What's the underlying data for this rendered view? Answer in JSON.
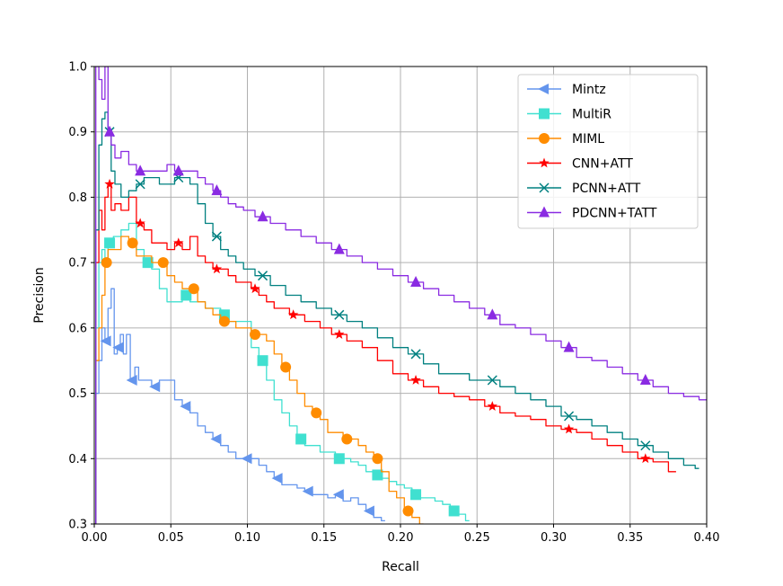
{
  "chart_data": {
    "type": "line",
    "xlabel": "Recall",
    "ylabel": "Precision",
    "xlim": [
      0.0,
      0.4
    ],
    "ylim": [
      0.3,
      1.0
    ],
    "x_ticks": [
      "0.00",
      "0.05",
      "0.10",
      "0.15",
      "0.20",
      "0.25",
      "0.30",
      "0.35",
      "0.40"
    ],
    "y_ticks": [
      "0.3",
      "0.4",
      "0.5",
      "0.6",
      "0.7",
      "0.8",
      "0.9",
      "1.0"
    ],
    "grid": true,
    "legend_position": "top-right",
    "series": [
      {
        "name": "Mintz",
        "color": "#6495ED",
        "marker": "triangle-left",
        "x": [
          0.0,
          0.002,
          0.004,
          0.006,
          0.008,
          0.01,
          0.012,
          0.014,
          0.016,
          0.018,
          0.02,
          0.022,
          0.025,
          0.028,
          0.03,
          0.035,
          0.04,
          0.045,
          0.05,
          0.055,
          0.06,
          0.065,
          0.07,
          0.075,
          0.08,
          0.085,
          0.09,
          0.095,
          0.1,
          0.105,
          0.11,
          0.115,
          0.12,
          0.125,
          0.13,
          0.135,
          0.14,
          0.145,
          0.15,
          0.155,
          0.16,
          0.165,
          0.17,
          0.175,
          0.18,
          0.185,
          0.19
        ],
        "y": [
          0.3,
          0.5,
          0.55,
          0.6,
          0.58,
          0.63,
          0.66,
          0.56,
          0.57,
          0.59,
          0.56,
          0.59,
          0.52,
          0.54,
          0.52,
          0.52,
          0.51,
          0.52,
          0.52,
          0.49,
          0.48,
          0.47,
          0.45,
          0.44,
          0.43,
          0.42,
          0.41,
          0.4,
          0.4,
          0.4,
          0.39,
          0.38,
          0.37,
          0.36,
          0.36,
          0.355,
          0.35,
          0.345,
          0.345,
          0.34,
          0.345,
          0.335,
          0.34,
          0.33,
          0.32,
          0.31,
          0.305
        ]
      },
      {
        "name": "MultiR",
        "color": "#40E0D0",
        "marker": "square",
        "x": [
          0.0,
          0.002,
          0.004,
          0.006,
          0.008,
          0.01,
          0.015,
          0.02,
          0.025,
          0.03,
          0.035,
          0.04,
          0.045,
          0.05,
          0.055,
          0.06,
          0.065,
          0.07,
          0.075,
          0.08,
          0.085,
          0.09,
          0.095,
          0.1,
          0.105,
          0.11,
          0.115,
          0.12,
          0.125,
          0.13,
          0.135,
          0.14,
          0.145,
          0.15,
          0.155,
          0.16,
          0.165,
          0.17,
          0.175,
          0.18,
          0.185,
          0.19,
          0.195,
          0.2,
          0.205,
          0.21,
          0.215,
          0.22,
          0.225,
          0.23,
          0.235,
          0.24,
          0.245
        ],
        "y": [
          0.5,
          0.6,
          0.7,
          0.72,
          0.7,
          0.73,
          0.74,
          0.75,
          0.76,
          0.72,
          0.7,
          0.69,
          0.66,
          0.64,
          0.64,
          0.65,
          0.64,
          0.64,
          0.63,
          0.63,
          0.62,
          0.61,
          0.61,
          0.61,
          0.57,
          0.55,
          0.52,
          0.49,
          0.47,
          0.45,
          0.43,
          0.42,
          0.42,
          0.41,
          0.41,
          0.4,
          0.4,
          0.395,
          0.39,
          0.38,
          0.375,
          0.37,
          0.365,
          0.36,
          0.355,
          0.345,
          0.34,
          0.34,
          0.335,
          0.33,
          0.32,
          0.315,
          0.305
        ]
      },
      {
        "name": "MIML",
        "color": "#FF8C00",
        "marker": "circle",
        "x": [
          0.0,
          0.002,
          0.004,
          0.006,
          0.008,
          0.01,
          0.015,
          0.02,
          0.025,
          0.03,
          0.035,
          0.04,
          0.045,
          0.05,
          0.055,
          0.06,
          0.065,
          0.07,
          0.075,
          0.08,
          0.085,
          0.09,
          0.095,
          0.1,
          0.105,
          0.11,
          0.115,
          0.12,
          0.125,
          0.13,
          0.135,
          0.14,
          0.145,
          0.15,
          0.155,
          0.16,
          0.165,
          0.17,
          0.175,
          0.18,
          0.185,
          0.19,
          0.195,
          0.2,
          0.205,
          0.21,
          0.215
        ],
        "y": [
          0.3,
          0.55,
          0.6,
          0.65,
          0.7,
          0.72,
          0.72,
          0.74,
          0.73,
          0.71,
          0.71,
          0.7,
          0.7,
          0.68,
          0.67,
          0.66,
          0.66,
          0.64,
          0.63,
          0.62,
          0.61,
          0.61,
          0.6,
          0.6,
          0.59,
          0.59,
          0.58,
          0.56,
          0.54,
          0.52,
          0.5,
          0.48,
          0.47,
          0.46,
          0.44,
          0.44,
          0.43,
          0.43,
          0.42,
          0.41,
          0.4,
          0.38,
          0.35,
          0.34,
          0.32,
          0.31,
          0.3
        ]
      },
      {
        "name": "CNN+ATT",
        "color": "#FF0000",
        "marker": "star",
        "x": [
          0.0,
          0.002,
          0.004,
          0.006,
          0.008,
          0.01,
          0.012,
          0.015,
          0.02,
          0.025,
          0.03,
          0.035,
          0.04,
          0.045,
          0.05,
          0.055,
          0.06,
          0.065,
          0.07,
          0.075,
          0.08,
          0.085,
          0.09,
          0.095,
          0.1,
          0.105,
          0.11,
          0.115,
          0.12,
          0.125,
          0.13,
          0.135,
          0.14,
          0.145,
          0.15,
          0.16,
          0.17,
          0.18,
          0.19,
          0.2,
          0.21,
          0.22,
          0.23,
          0.24,
          0.25,
          0.26,
          0.27,
          0.28,
          0.29,
          0.3,
          0.31,
          0.32,
          0.33,
          0.34,
          0.35,
          0.36,
          0.37,
          0.38
        ],
        "y": [
          0.3,
          0.7,
          0.78,
          0.75,
          0.8,
          0.82,
          0.78,
          0.79,
          0.78,
          0.8,
          0.76,
          0.75,
          0.73,
          0.73,
          0.72,
          0.73,
          0.72,
          0.74,
          0.71,
          0.7,
          0.69,
          0.69,
          0.68,
          0.67,
          0.67,
          0.66,
          0.65,
          0.64,
          0.63,
          0.63,
          0.62,
          0.62,
          0.61,
          0.61,
          0.6,
          0.59,
          0.58,
          0.57,
          0.55,
          0.53,
          0.52,
          0.51,
          0.5,
          0.495,
          0.49,
          0.48,
          0.47,
          0.465,
          0.46,
          0.45,
          0.445,
          0.44,
          0.43,
          0.42,
          0.41,
          0.4,
          0.395,
          0.38
        ]
      },
      {
        "name": "PCNN+ATT",
        "color": "#008080",
        "marker": "x",
        "x": [
          0.0,
          0.002,
          0.004,
          0.006,
          0.008,
          0.01,
          0.012,
          0.015,
          0.02,
          0.025,
          0.03,
          0.035,
          0.04,
          0.045,
          0.05,
          0.055,
          0.06,
          0.065,
          0.07,
          0.075,
          0.08,
          0.085,
          0.09,
          0.095,
          0.1,
          0.11,
          0.12,
          0.13,
          0.14,
          0.15,
          0.16,
          0.17,
          0.18,
          0.19,
          0.2,
          0.21,
          0.22,
          0.23,
          0.24,
          0.25,
          0.26,
          0.27,
          0.28,
          0.29,
          0.3,
          0.31,
          0.32,
          0.33,
          0.34,
          0.35,
          0.36,
          0.37,
          0.38,
          0.39,
          0.395
        ],
        "y": [
          0.3,
          0.75,
          0.88,
          0.92,
          0.93,
          0.9,
          0.84,
          0.82,
          0.8,
          0.81,
          0.82,
          0.83,
          0.83,
          0.82,
          0.82,
          0.83,
          0.83,
          0.82,
          0.79,
          0.76,
          0.74,
          0.72,
          0.71,
          0.7,
          0.69,
          0.68,
          0.665,
          0.65,
          0.64,
          0.63,
          0.62,
          0.61,
          0.6,
          0.585,
          0.57,
          0.56,
          0.545,
          0.53,
          0.53,
          0.52,
          0.52,
          0.51,
          0.5,
          0.49,
          0.48,
          0.465,
          0.46,
          0.45,
          0.44,
          0.43,
          0.42,
          0.41,
          0.4,
          0.39,
          0.385
        ]
      },
      {
        "name": "PDCNN+TATT",
        "color": "#8A2BE2",
        "marker": "triangle-up",
        "x": [
          0.0,
          0.002,
          0.004,
          0.006,
          0.008,
          0.01,
          0.012,
          0.015,
          0.02,
          0.025,
          0.03,
          0.035,
          0.04,
          0.045,
          0.05,
          0.055,
          0.06,
          0.065,
          0.07,
          0.075,
          0.08,
          0.085,
          0.09,
          0.095,
          0.1,
          0.11,
          0.12,
          0.13,
          0.14,
          0.15,
          0.16,
          0.17,
          0.18,
          0.19,
          0.2,
          0.21,
          0.22,
          0.23,
          0.24,
          0.25,
          0.26,
          0.27,
          0.28,
          0.29,
          0.3,
          0.31,
          0.32,
          0.33,
          0.34,
          0.35,
          0.36,
          0.37,
          0.38,
          0.39,
          0.4
        ],
        "y": [
          0.3,
          1.0,
          0.98,
          0.95,
          1.0,
          0.9,
          0.88,
          0.86,
          0.87,
          0.85,
          0.84,
          0.84,
          0.84,
          0.84,
          0.85,
          0.84,
          0.84,
          0.84,
          0.83,
          0.82,
          0.81,
          0.8,
          0.79,
          0.785,
          0.78,
          0.77,
          0.76,
          0.75,
          0.74,
          0.73,
          0.72,
          0.71,
          0.7,
          0.69,
          0.68,
          0.67,
          0.66,
          0.65,
          0.64,
          0.63,
          0.62,
          0.605,
          0.6,
          0.59,
          0.58,
          0.57,
          0.555,
          0.55,
          0.54,
          0.53,
          0.52,
          0.51,
          0.5,
          0.495,
          0.49
        ]
      }
    ]
  }
}
